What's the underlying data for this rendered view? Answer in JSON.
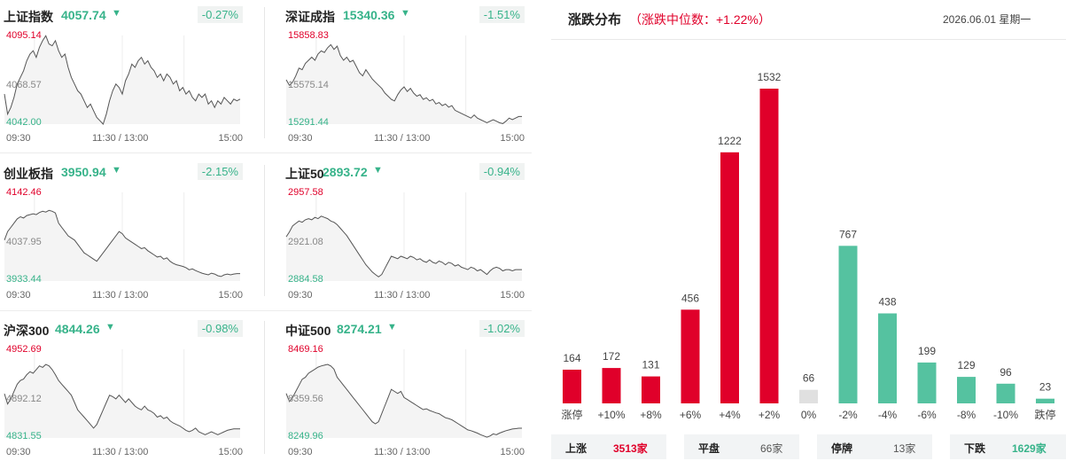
{
  "indices": [
    {
      "name": "上证指数",
      "value": "4057.74",
      "arrow": "▼",
      "change": "-0.27%",
      "high": "4095.14",
      "mid": "4068.57",
      "low": "4042.00",
      "series": [
        4060,
        4048,
        4052,
        4058,
        4066,
        4070,
        4074,
        4080,
        4084,
        4086,
        4082,
        4088,
        4092,
        4095,
        4090,
        4089,
        4092,
        4086,
        4082,
        4084,
        4076,
        4070,
        4066,
        4062,
        4060,
        4056,
        4052,
        4054,
        4050,
        4046,
        4044,
        4042,
        4048,
        4056,
        4062,
        4066,
        4064,
        4060,
        4068,
        4072,
        4078,
        4076,
        4080,
        4082,
        4078,
        4080,
        4076,
        4074,
        4070,
        4072,
        4068,
        4072,
        4070,
        4066,
        4068,
        4062,
        4064,
        4060,
        4062,
        4058,
        4056,
        4060,
        4058,
        4060,
        4054,
        4056,
        4052,
        4056,
        4054,
        4058,
        4056,
        4054,
        4057,
        4056,
        4057
      ]
    },
    {
      "name": "深证成指",
      "value": "15340.36",
      "arrow": "▼",
      "change": "-1.51%",
      "high": "15858.83",
      "mid": "15575.14",
      "low": "15291.44",
      "series": [
        15575,
        15540,
        15560,
        15600,
        15650,
        15640,
        15680,
        15700,
        15720,
        15700,
        15740,
        15760,
        15750,
        15780,
        15800,
        15770,
        15790,
        15730,
        15700,
        15720,
        15690,
        15700,
        15660,
        15620,
        15600,
        15640,
        15610,
        15580,
        15560,
        15540,
        15520,
        15490,
        15470,
        15450,
        15440,
        15480,
        15510,
        15530,
        15500,
        15520,
        15490,
        15470,
        15480,
        15450,
        15460,
        15440,
        15450,
        15420,
        15430,
        15410,
        15420,
        15400,
        15410,
        15380,
        15370,
        15360,
        15350,
        15340,
        15330,
        15350,
        15330,
        15320,
        15310,
        15300,
        15310,
        15320,
        15310,
        15300,
        15295,
        15310,
        15330,
        15320,
        15330,
        15340,
        15340
      ]
    },
    {
      "name": "创业板指",
      "value": "3950.94",
      "arrow": "▼",
      "change": "-2.15%",
      "high": "4142.46",
      "mid": "4037.95",
      "low": "3933.44",
      "series": [
        4030,
        4050,
        4060,
        4070,
        4080,
        4085,
        4082,
        4088,
        4090,
        4092,
        4090,
        4095,
        4098,
        4096,
        4100,
        4098,
        4094,
        4070,
        4060,
        4050,
        4040,
        4035,
        4030,
        4020,
        4010,
        4000,
        3995,
        3990,
        3985,
        3980,
        3990,
        4000,
        4010,
        4020,
        4030,
        4040,
        4050,
        4045,
        4035,
        4030,
        4025,
        4020,
        4015,
        4010,
        4012,
        4005,
        4000,
        3995,
        3990,
        3992,
        3985,
        3988,
        3980,
        3975,
        3972,
        3970,
        3968,
        3965,
        3960,
        3962,
        3958,
        3955,
        3952,
        3950,
        3948,
        3952,
        3950,
        3946,
        3944,
        3948,
        3950,
        3948,
        3950,
        3951,
        3951
      ]
    },
    {
      "name": "上证50",
      "value": "2893.72",
      "arrow": "▼",
      "change": "-0.94%",
      "high": "2957.58",
      "mid": "2921.08",
      "low": "2884.58",
      "series": [
        2921,
        2925,
        2930,
        2932,
        2934,
        2933,
        2935,
        2936,
        2935,
        2937,
        2936,
        2938,
        2937,
        2936,
        2934,
        2933,
        2931,
        2928,
        2925,
        2922,
        2918,
        2914,
        2910,
        2906,
        2902,
        2898,
        2895,
        2892,
        2890,
        2888,
        2890,
        2895,
        2900,
        2905,
        2904,
        2903,
        2905,
        2904,
        2903,
        2905,
        2904,
        2902,
        2903,
        2901,
        2900,
        2902,
        2900,
        2899,
        2901,
        2900,
        2898,
        2900,
        2899,
        2897,
        2898,
        2896,
        2895,
        2894,
        2896,
        2895,
        2893,
        2894,
        2892,
        2890,
        2893,
        2895,
        2896,
        2895,
        2893,
        2894,
        2894,
        2893,
        2894,
        2894,
        2894
      ]
    },
    {
      "name": "沪深300",
      "value": "4844.26",
      "arrow": "▼",
      "change": "-0.98%",
      "high": "4952.69",
      "mid": "4892.12",
      "low": "4831.55",
      "series": [
        4892,
        4878,
        4885,
        4895,
        4905,
        4910,
        4912,
        4918,
        4922,
        4920,
        4925,
        4930,
        4928,
        4932,
        4930,
        4925,
        4918,
        4910,
        4905,
        4900,
        4895,
        4890,
        4880,
        4870,
        4865,
        4860,
        4855,
        4850,
        4845,
        4850,
        4860,
        4870,
        4880,
        4890,
        4888,
        4885,
        4890,
        4885,
        4880,
        4885,
        4880,
        4875,
        4872,
        4870,
        4875,
        4870,
        4868,
        4865,
        4860,
        4862,
        4858,
        4860,
        4855,
        4852,
        4850,
        4848,
        4845,
        4842,
        4840,
        4842,
        4845,
        4840,
        4838,
        4836,
        4838,
        4840,
        4838,
        4836,
        4838,
        4840,
        4842,
        4843,
        4844,
        4844,
        4844
      ]
    },
    {
      "name": "中证500",
      "value": "8274.21",
      "arrow": "▼",
      "change": "-1.02%",
      "high": "8469.16",
      "mid": "8359.56",
      "low": "8249.96",
      "series": [
        8360,
        8340,
        8350,
        8365,
        8380,
        8395,
        8400,
        8410,
        8415,
        8420,
        8425,
        8428,
        8430,
        8432,
        8428,
        8420,
        8400,
        8390,
        8380,
        8370,
        8360,
        8350,
        8340,
        8330,
        8320,
        8310,
        8300,
        8290,
        8285,
        8290,
        8310,
        8330,
        8350,
        8370,
        8365,
        8360,
        8365,
        8350,
        8345,
        8340,
        8335,
        8330,
        8325,
        8320,
        8322,
        8318,
        8315,
        8312,
        8310,
        8305,
        8300,
        8298,
        8295,
        8290,
        8285,
        8280,
        8275,
        8270,
        8268,
        8265,
        8262,
        8258,
        8255,
        8252,
        8255,
        8260,
        8258,
        8262,
        8265,
        8268,
        8270,
        8272,
        8273,
        8274,
        8274
      ]
    }
  ],
  "time_labels": [
    "09:30",
    "11:30 / 13:00",
    "15:00"
  ],
  "distribution": {
    "title": "涨跌分布",
    "subtitle": "（涨跌中位数：+1.22%）",
    "date": "2026.06.01 星期一",
    "colors": {
      "up": "#e0002a",
      "flat": "#e0e0e0",
      "down": "#55c2a0"
    },
    "chart_data": {
      "type": "bar",
      "categories": [
        "涨停",
        "+10%",
        "+8%",
        "+6%",
        "+4%",
        "+2%",
        "0%",
        "-2%",
        "-4%",
        "-6%",
        "-8%",
        "-10%",
        "跌停"
      ],
      "values": [
        164,
        172,
        131,
        456,
        1222,
        1532,
        66,
        767,
        438,
        199,
        129,
        96,
        23
      ],
      "groups": [
        "up",
        "up",
        "up",
        "up",
        "up",
        "up",
        "flat",
        "down",
        "down",
        "down",
        "down",
        "down",
        "down"
      ],
      "ylim": [
        0,
        1532
      ]
    },
    "summary": [
      {
        "label": "上涨",
        "value": "3513家",
        "tone": "red"
      },
      {
        "label": "平盘",
        "value": "66家",
        "tone": "plain"
      },
      {
        "label": "停牌",
        "value": "13家",
        "tone": "plain"
      },
      {
        "label": "下跌",
        "value": "1629家",
        "tone": "grn"
      }
    ]
  }
}
